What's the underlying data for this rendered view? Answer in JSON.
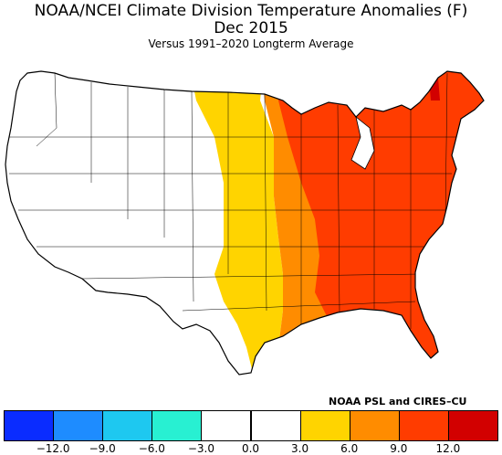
{
  "title_line1": "NOAA/NCEI Climate Division Temperature Anomalies (F)",
  "title_line2": "Dec 2015",
  "subtitle": "Versus 1991–2020 Longterm Average",
  "credit": "NOAA PSL and CIRES–CU",
  "legend": {
    "colors": [
      "#0a2cff",
      "#1e8cff",
      "#1ec8f0",
      "#28f0d2",
      "#ffffff",
      "#ffffff",
      "#ffd400",
      "#ff8c00",
      "#ff3c00",
      "#d20000"
    ],
    "ticks": [
      "−12.0",
      "−9.0",
      "−6.0",
      "−3.0",
      "0.0",
      "3.0",
      "6.0",
      "9.0",
      "12.0"
    ]
  },
  "anomaly_zones": [
    {
      "range": "0 to 3",
      "color": "#ffffff"
    },
    {
      "range": "3 to 6",
      "color": "#ffd400"
    },
    {
      "range": "6 to 9",
      "color": "#ff8c00"
    },
    {
      "range": "9 to 12",
      "color": "#ff3c00"
    },
    {
      "range": "over 12",
      "color": "#d20000"
    }
  ]
}
